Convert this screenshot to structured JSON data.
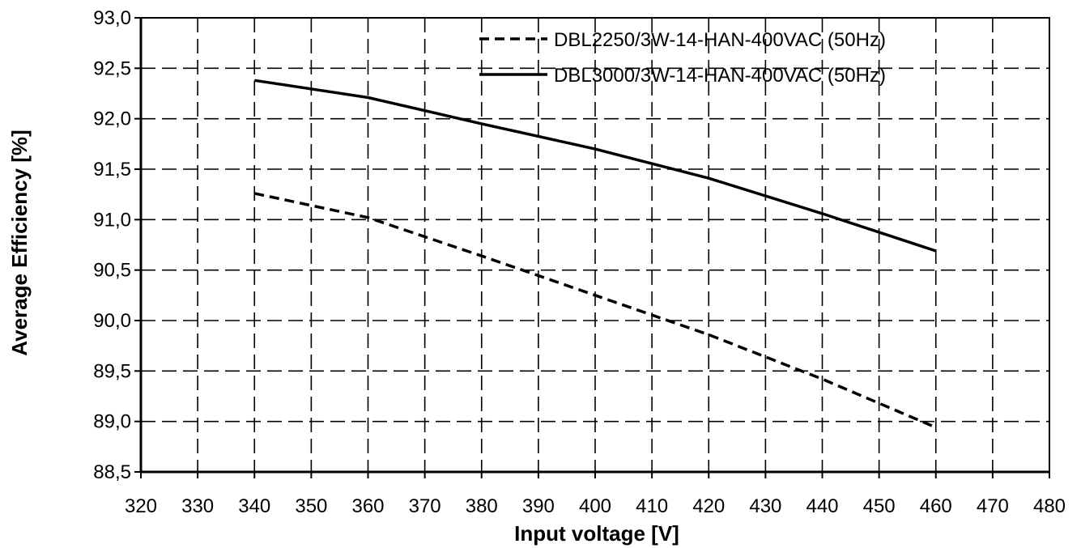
{
  "chart_data": {
    "type": "line",
    "xlabel": "Input voltage [V]",
    "ylabel": "Average Efficiency [%]",
    "xlim": [
      320,
      480
    ],
    "ylim": [
      88.5,
      93.0
    ],
    "x_ticks": [
      "320",
      "330",
      "340",
      "350",
      "360",
      "370",
      "380",
      "390",
      "400",
      "410",
      "420",
      "430",
      "440",
      "450",
      "460",
      "470",
      "480"
    ],
    "y_ticks": [
      "93,0",
      "92,5",
      "92,0",
      "91,5",
      "91,0",
      "90,5",
      "90,0",
      "89,5",
      "89,0",
      "88,5"
    ],
    "grid": true,
    "legend_position": "top-right",
    "series": [
      {
        "name": "DBL2250/3W-14-HAN-400VAC (50Hz)",
        "style": "dashed",
        "color": "#000000",
        "x": [
          340,
          360,
          380,
          400,
          420,
          440,
          460
        ],
        "values": [
          91.26,
          91.02,
          90.64,
          90.25,
          89.86,
          89.42,
          88.94
        ]
      },
      {
        "name": "DBL3000/3W-14-HAN-400VAC (50Hz)",
        "style": "solid",
        "color": "#000000",
        "x": [
          340,
          360,
          380,
          400,
          420,
          440,
          460
        ],
        "values": [
          92.38,
          92.21,
          91.95,
          91.7,
          91.41,
          91.06,
          90.69
        ]
      }
    ]
  }
}
